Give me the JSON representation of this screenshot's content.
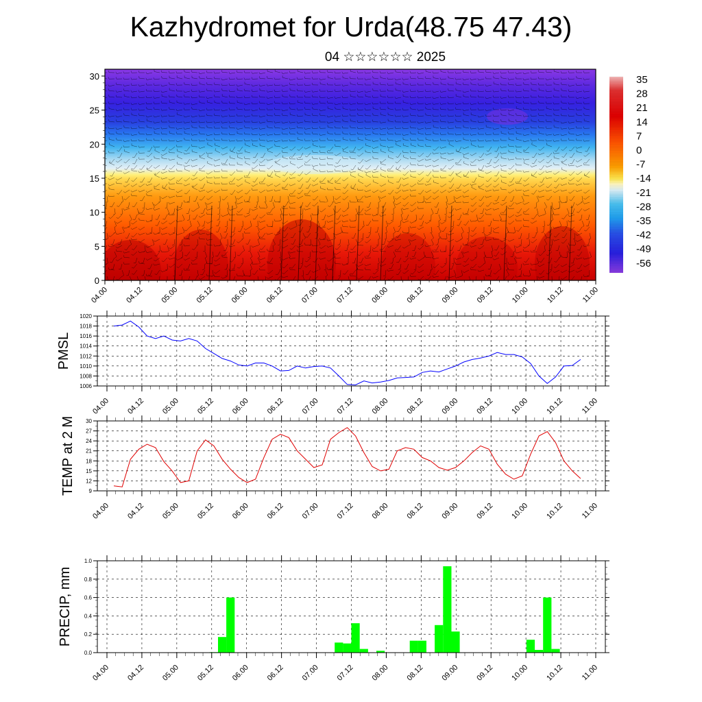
{
  "page": {
    "title": "Kazhydromet for Urda(48.75 47.43)",
    "subtitle": "04 ☆☆☆☆☆☆ 2025"
  },
  "chart_data": [
    {
      "type": "heatmap",
      "name": "vertical-cross-section",
      "x_ticks": [
        "04.00",
        "04.12",
        "05.00",
        "05.12",
        "06.00",
        "06.12",
        "07.00",
        "07.12",
        "08.00",
        "08.12",
        "09.00",
        "09.12",
        "10.00",
        "10.12",
        "11.00"
      ],
      "y_ticks": [
        "0",
        "5",
        "10",
        "15",
        "20",
        "25",
        "30"
      ],
      "ylim": [
        0,
        31
      ],
      "colorbar_labels": [
        "35",
        "28",
        "21",
        "14",
        "7",
        "0",
        "-7",
        "-14",
        "-21",
        "-28",
        "-35",
        "-42",
        "-49",
        "-56"
      ],
      "colors": {
        "hot": "#d80000",
        "orange": "#ff7a00",
        "yellow": "#ffe060",
        "pale": "#cde8f5",
        "cyan": "#38b8f0",
        "blue": "#2848e8",
        "violet": "#7a2cd8"
      },
      "wind_barbs": true
    },
    {
      "type": "line",
      "name": "pmsl",
      "ylabel": "PMSL",
      "yticks": [
        "1020",
        "1018",
        "1016",
        "1014",
        "1012",
        "1010",
        "1008",
        "1006"
      ],
      "ylim": [
        1006,
        1020
      ],
      "x_ticks": [
        "04.00",
        "04.12",
        "05.00",
        "05.12",
        "06.00",
        "06.12",
        "07.00",
        "07.12",
        "08.00",
        "08.12",
        "09.00",
        "09.12",
        "10.00",
        "10.12",
        "11.00"
      ],
      "color": "#0000ff",
      "values": [
        1018.0,
        1018.2,
        1019.0,
        1017.8,
        1016.0,
        1015.5,
        1016.0,
        1015.2,
        1015.0,
        1015.5,
        1015.0,
        1013.5,
        1012.5,
        1011.5,
        1011.0,
        1010.2,
        1010.0,
        1010.6,
        1010.6,
        1010.0,
        1009.0,
        1009.1,
        1010.0,
        1009.6,
        1009.9,
        1010.0,
        1009.6,
        1008.0,
        1006.3,
        1006.2,
        1007.0,
        1006.6,
        1006.8,
        1007.1,
        1007.6,
        1007.7,
        1007.8,
        1008.7,
        1009.0,
        1008.8,
        1009.4,
        1010.0,
        1010.8,
        1011.3,
        1011.6,
        1012.0,
        1012.7,
        1012.3,
        1012.3,
        1011.8,
        1010.5,
        1008.0,
        1006.5,
        1007.8,
        1010.0,
        1010.1,
        1011.3
      ]
    },
    {
      "type": "line",
      "name": "temp2m",
      "ylabel": "TEMP at 2 M",
      "yticks": [
        "30",
        "27",
        "24",
        "21",
        "18",
        "15",
        "12",
        "9"
      ],
      "ylim": [
        9,
        30
      ],
      "x_ticks": [
        "04.00",
        "04.12",
        "05.00",
        "05.12",
        "06.00",
        "06.12",
        "07.00",
        "07.12",
        "08.00",
        "08.12",
        "09.00",
        "09.12",
        "10.00",
        "10.12",
        "11.00"
      ],
      "color": "#e00000",
      "values": [
        10.5,
        10.2,
        18.5,
        21.5,
        23.0,
        22.0,
        17.8,
        15.0,
        11.5,
        12.0,
        21.0,
        24.3,
        22.5,
        18.5,
        15.5,
        13.0,
        11.5,
        12.5,
        19.0,
        24.5,
        26.0,
        25.0,
        21.0,
        18.5,
        16.0,
        16.8,
        24.5,
        26.5,
        28.0,
        25.5,
        20.5,
        16.3,
        15.0,
        15.5,
        21.0,
        22.0,
        21.5,
        19.0,
        18.0,
        16.0,
        15.2,
        16.0,
        18.0,
        20.5,
        22.5,
        21.5,
        17.0,
        14.0,
        12.5,
        13.5,
        20.0,
        25.5,
        26.8,
        23.5,
        18.0,
        15.0,
        12.7
      ]
    },
    {
      "type": "bar",
      "name": "precip",
      "ylabel": "PRECIP, mm",
      "yticks": [
        "1.0",
        "0.8",
        "0.6",
        "0.4",
        "0.2",
        "0.0"
      ],
      "ylim": [
        0,
        1.0
      ],
      "x_ticks": [
        "04.00",
        "04.12",
        "05.00",
        "05.12",
        "06.00",
        "06.12",
        "07.00",
        "07.12",
        "08.00",
        "08.12",
        "09.00",
        "09.12",
        "10.00",
        "10.12",
        "11.00"
      ],
      "color": "#00ff00",
      "values": [
        0,
        0,
        0,
        0,
        0,
        0,
        0,
        0,
        0,
        0,
        0,
        0,
        0.005,
        0.17,
        0.6,
        0,
        0,
        0,
        0,
        0,
        0,
        0,
        0,
        0,
        0,
        0,
        0,
        0.11,
        0.1,
        0.32,
        0.04,
        0,
        0.02,
        0,
        0,
        0,
        0.13,
        0.13,
        0,
        0.3,
        0.94,
        0.23,
        0,
        0,
        0,
        0,
        0,
        0,
        0,
        0,
        0.14,
        0.03,
        0.6,
        0.04,
        0,
        0,
        0
      ]
    }
  ]
}
